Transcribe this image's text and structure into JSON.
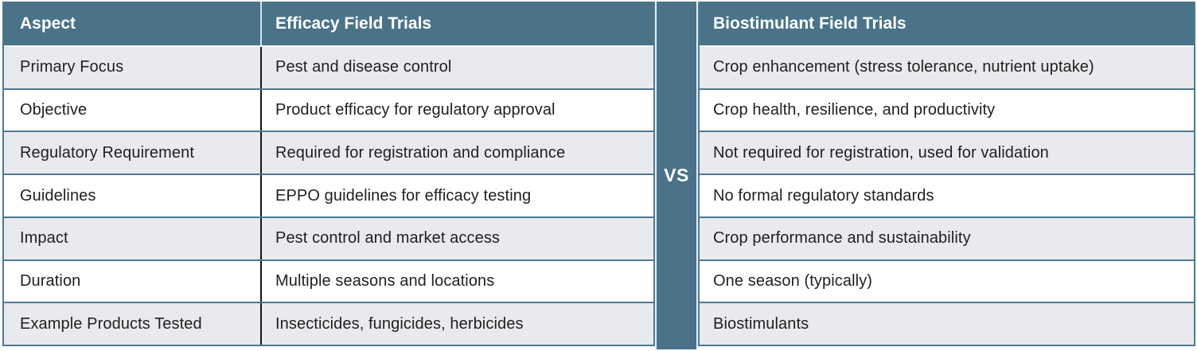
{
  "vs_label": "VS",
  "colors": {
    "header_bg": "#4A7389",
    "row_alt_bg": "#E9EAED",
    "row_bg": "#FFFFFF",
    "separator": "#4C7A93",
    "column_divider": "#141414",
    "header_text": "#FFFFFF",
    "body_text": "#1F1F1F"
  },
  "left_table": {
    "headers": [
      "Aspect",
      "Efficacy Field Trials"
    ],
    "rows": [
      [
        "Primary Focus",
        "Pest and disease control"
      ],
      [
        "Objective",
        "Product efficacy for regulatory approval"
      ],
      [
        "Regulatory Requirement",
        "Required for registration and compliance"
      ],
      [
        "Guidelines",
        "EPPO guidelines for efficacy testing"
      ],
      [
        "Impact",
        "Pest control and market access"
      ],
      [
        "Duration",
        "Multiple seasons and locations"
      ],
      [
        "Example Products Tested",
        "Insecticides, fungicides, herbicides"
      ]
    ]
  },
  "right_table": {
    "header": "Biostimulant Field Trials",
    "rows": [
      "Crop enhancement (stress tolerance, nutrient uptake)",
      "Crop health, resilience, and productivity",
      "Not required for registration, used for validation",
      "No formal regulatory standards",
      "Crop performance and sustainability",
      "One season (typically)",
      "Biostimulants"
    ]
  }
}
